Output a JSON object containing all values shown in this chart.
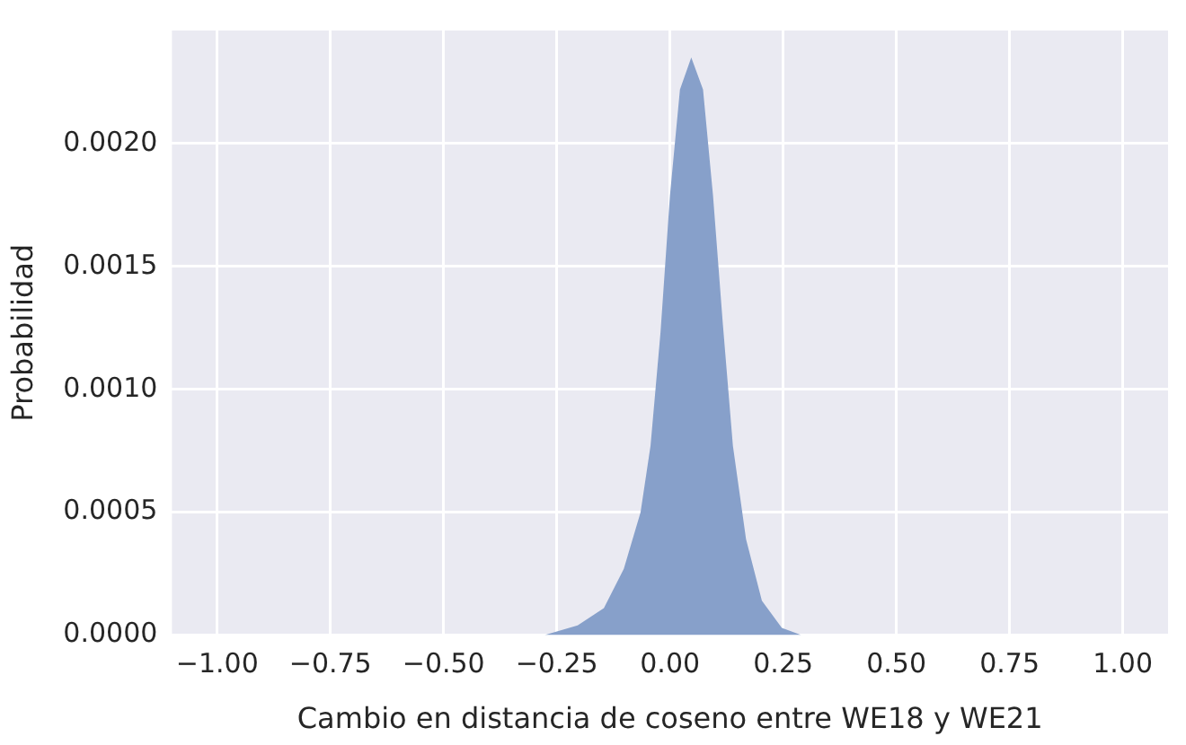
{
  "chart_data": {
    "type": "area",
    "xlabel": "Cambio en distancia de coseno entre WE18 y WE21",
    "ylabel": "Probabilidad",
    "x": [
      -0.277,
      -0.204,
      -0.146,
      -0.102,
      -0.065,
      -0.043,
      -0.021,
      0.0,
      0.022,
      0.047,
      0.073,
      0.095,
      0.117,
      0.139,
      0.168,
      0.203,
      0.247,
      0.29
    ],
    "series": [
      {
        "color": "#87a0ca",
        "values": [
          0,
          4e-05,
          0.00011,
          0.00027,
          0.0005,
          0.00077,
          0.00123,
          0.00179,
          0.00222,
          0.00235,
          0.00222,
          0.00179,
          0.00126,
          0.00077,
          0.00039,
          0.00014,
          3e-05,
          0
        ]
      }
    ],
    "xlim": [
      -1.1,
      1.1
    ],
    "ylim": [
      0,
      0.00246
    ],
    "xticks": [
      {
        "value": -1,
        "label": "−1.00"
      },
      {
        "value": -0.75,
        "label": "−0.75"
      },
      {
        "value": -0.5,
        "label": "−0.50"
      },
      {
        "value": -0.25,
        "label": "−0.25"
      },
      {
        "value": 0,
        "label": "0.00"
      },
      {
        "value": 0.25,
        "label": "0.25"
      },
      {
        "value": 0.5,
        "label": "0.50"
      },
      {
        "value": 0.75,
        "label": "0.75"
      },
      {
        "value": 1,
        "label": "1.00"
      }
    ],
    "yticks": [
      {
        "value": 0,
        "label": "0.0000"
      },
      {
        "value": 0.0005,
        "label": "0.0005"
      },
      {
        "value": 0.001,
        "label": "0.0010"
      },
      {
        "value": 0.0015,
        "label": "0.0015"
      },
      {
        "value": 0.002,
        "label": "0.0020"
      }
    ],
    "grid": true,
    "legend": false
  }
}
